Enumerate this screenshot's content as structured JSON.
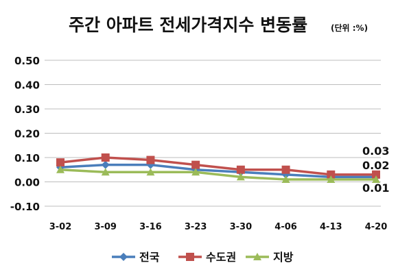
{
  "chart_data": {
    "type": "line",
    "title": "주간 아파트 전세가격지수 변동률",
    "unit_note": "(단위 :%)",
    "categories": [
      "3-02",
      "3-09",
      "3-16",
      "3-23",
      "3-30",
      "4-06",
      "4-13",
      "4-20"
    ],
    "y_ticks": [
      "0.50",
      "0.40",
      "0.30",
      "0.20",
      "0.10",
      "0.00",
      "-0.10"
    ],
    "ylim": [
      -0.1,
      0.5
    ],
    "grid": true,
    "legend_position": "bottom",
    "series": [
      {
        "name": "전국",
        "color": "#4a7ebb",
        "marker": "diamond",
        "values": [
          0.06,
          0.07,
          0.07,
          0.05,
          0.04,
          0.03,
          0.02,
          0.02
        ]
      },
      {
        "name": "수도권",
        "color": "#c0504d",
        "marker": "square",
        "values": [
          0.08,
          0.1,
          0.09,
          0.07,
          0.05,
          0.05,
          0.03,
          0.03
        ]
      },
      {
        "name": "지방",
        "color": "#9bbb59",
        "marker": "triangle",
        "values": [
          0.05,
          0.04,
          0.04,
          0.04,
          0.02,
          0.01,
          0.01,
          0.01
        ]
      }
    ],
    "end_labels": [
      "0.03",
      "0.02",
      "0.01"
    ]
  }
}
